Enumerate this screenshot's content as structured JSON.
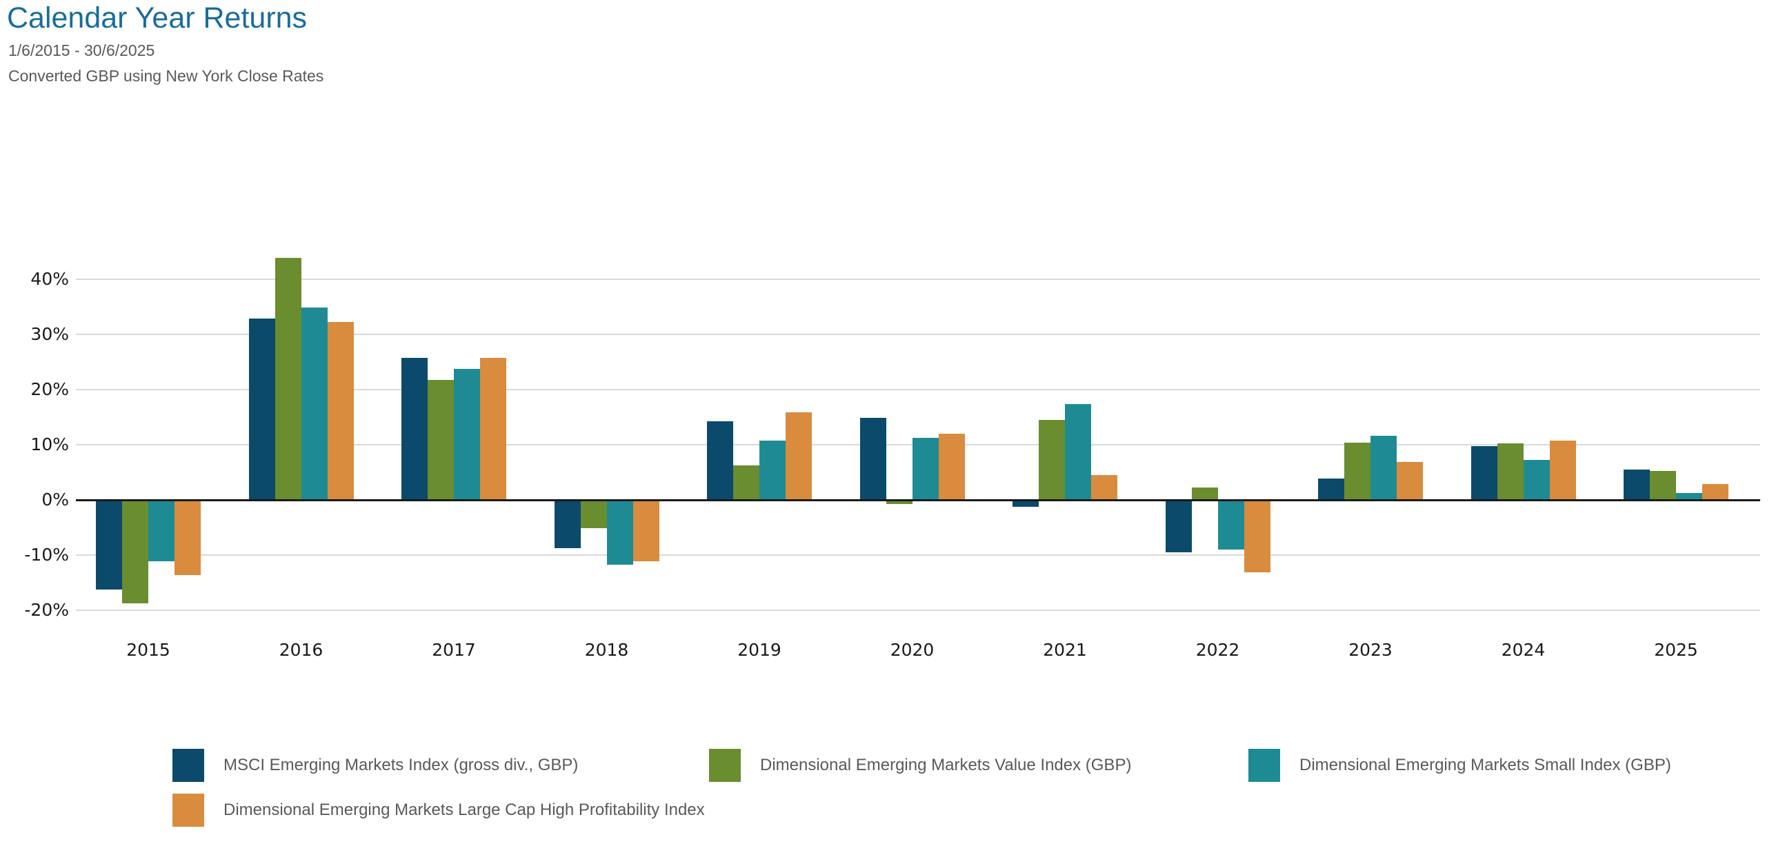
{
  "header": {
    "title": "Calendar Year Returns",
    "period": "1/6/2015 - 30/6/2025",
    "note": "Converted GBP using New York Close Rates"
  },
  "colors": {
    "title_blue": "#196c9d",
    "subtitle_gray": "#58595b",
    "axis_text": "#1a1a1a",
    "gridline": "#d9d9d9",
    "zero_line": "#1a1a1a"
  },
  "chart_data": {
    "type": "bar",
    "title": "Calendar Year Returns",
    "xlabel": "",
    "ylabel": "",
    "ytick_suffix": "%",
    "yticks": [
      40,
      30,
      20,
      10,
      0,
      -10,
      -20
    ],
    "ylim": [
      -25,
      47
    ],
    "grid": true,
    "legend_position": "bottom",
    "categories": [
      "2015",
      "2016",
      "2017",
      "2018",
      "2019",
      "2020",
      "2021",
      "2022",
      "2023",
      "2024",
      "2025"
    ],
    "series": [
      {
        "name": "MSCI Emerging Markets Index (gross div., GBP)",
        "color": "#0b4a6a",
        "values": [
          -16.3,
          32.9,
          25.8,
          -8.8,
          14.3,
          14.9,
          -1.3,
          -9.5,
          3.9,
          9.8,
          5.5
        ]
      },
      {
        "name": "Dimensional Emerging Markets Value Index (GBP)",
        "color": "#6a8d2f",
        "values": [
          -18.8,
          43.9,
          21.7,
          -5.1,
          6.2,
          -0.8,
          14.5,
          2.2,
          10.4,
          10.3,
          5.2
        ]
      },
      {
        "name": "Dimensional Emerging Markets Small Index (GBP)",
        "color": "#1e8b94",
        "values": [
          -11.1,
          34.9,
          23.8,
          -11.8,
          10.7,
          11.2,
          17.4,
          -9.0,
          11.6,
          7.3,
          1.3
        ]
      },
      {
        "name": "Dimensional Emerging Markets Large Cap High Profitability Index",
        "color": "#d98b3e",
        "values": [
          -13.6,
          32.3,
          25.8,
          -11.1,
          15.9,
          12.0,
          4.5,
          -13.1,
          6.9,
          10.7,
          2.9
        ]
      }
    ]
  },
  "legend": {
    "items": [
      {
        "label": "MSCI Emerging Markets Index (gross div., GBP)",
        "color": "#0b4a6a"
      },
      {
        "label": "Dimensional Emerging Markets Value Index (GBP)",
        "color": "#6a8d2f"
      },
      {
        "label": "Dimensional Emerging Markets Small Index (GBP)",
        "color": "#1e8b94"
      },
      {
        "label": "Dimensional Emerging Markets Large Cap High Profitability Index",
        "color": "#d98b3e"
      }
    ]
  }
}
